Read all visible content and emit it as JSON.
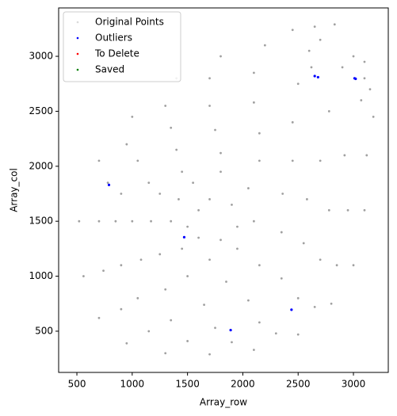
{
  "chart_data": {
    "type": "scatter",
    "xlabel": "Array_row",
    "ylabel": "Array_col",
    "xlim": [
      335,
      3315
    ],
    "ylim": [
      125,
      3440
    ],
    "xticks": [
      500,
      1000,
      1500,
      2000,
      2500,
      3000
    ],
    "yticks": [
      500,
      1000,
      1500,
      2000,
      2500,
      3000
    ],
    "grid": false,
    "legend": "upper left",
    "series": [
      {
        "name": "Original Points",
        "color": "#808080",
        "x": [
          520,
          560,
          700,
          950,
          1300,
          1700,
          2100,
          2500,
          2800,
          3000,
          3100,
          3120,
          3070,
          2900,
          2600,
          2200,
          1800,
          1400,
          1000,
          700,
          700,
          740,
          900,
          1150,
          1500,
          1900,
          2300,
          2650,
          2850,
          2950,
          2920,
          2780,
          2500,
          2100,
          1700,
          1300,
          950,
          780,
          850,
          900,
          1050,
          1350,
          1750,
          2150,
          2500,
          2700,
          2780,
          2700,
          2450,
          2100,
          1700,
          1350,
          1050,
          900,
          1000,
          1080,
          1300,
          1650,
          2050,
          2350,
          2550,
          2580,
          2450,
          2150,
          1750,
          1400,
          1150,
          1170,
          1250,
          1500,
          1850,
          2150,
          2350,
          2360,
          2150,
          1800,
          1450,
          1250,
          1350,
          1450,
          1700,
          1950,
          2100,
          2050,
          1800,
          1550,
          1420,
          1500,
          1600,
          1800,
          1950,
          1900,
          1700,
          1600,
          2450,
          2650,
          2830,
          2700,
          2620,
          3000,
          3100,
          3150,
          3180,
          3100
        ],
        "y": [
          1500,
          1000,
          620,
          390,
          300,
          290,
          330,
          470,
          750,
          1100,
          1600,
          2100,
          2600,
          2900,
          3050,
          3100,
          3000,
          2800,
          2450,
          2050,
          1500,
          1050,
          700,
          500,
          410,
          400,
          480,
          720,
          1100,
          1600,
          2100,
          2500,
          2750,
          2850,
          2800,
          2550,
          2200,
          1850,
          1500,
          1100,
          800,
          600,
          530,
          580,
          800,
          1150,
          1600,
          2050,
          2400,
          2580,
          2550,
          2350,
          2050,
          1750,
          1500,
          1150,
          880,
          740,
          780,
          980,
          1300,
          1700,
          2050,
          2300,
          2330,
          2150,
          1850,
          1500,
          1200,
          1000,
          950,
          1100,
          1400,
          1750,
          2050,
          2120,
          1950,
          1750,
          1500,
          1250,
          1150,
          1250,
          1500,
          1800,
          1950,
          1850,
          1700,
          1450,
          1350,
          1330,
          1450,
          1650,
          1700,
          1600,
          3240,
          3270,
          3290,
          3150,
          2900,
          3000,
          2950,
          2700,
          2450,
          2800
        ]
      },
      {
        "name": "Outliers",
        "color": "#0000ff",
        "x": [
          790,
          1470,
          1890,
          2440,
          2650,
          2680,
          3010,
          3020
        ],
        "y": [
          1830,
          1355,
          510,
          695,
          2820,
          2810,
          2800,
          2795
        ]
      },
      {
        "name": "To Delete",
        "color": "#ff0000",
        "x": [],
        "y": []
      },
      {
        "name": "Saved",
        "color": "#008000",
        "x": [],
        "y": []
      }
    ]
  }
}
